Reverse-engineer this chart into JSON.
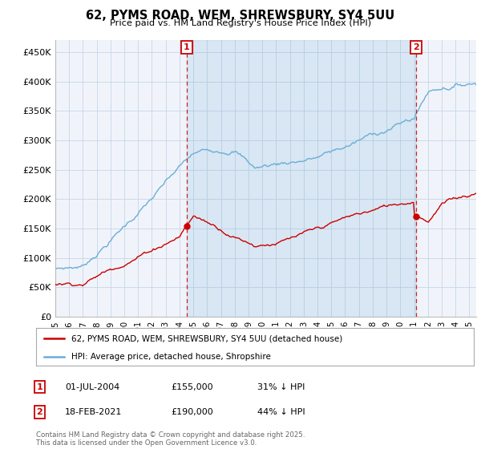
{
  "title": "62, PYMS ROAD, WEM, SHREWSBURY, SY4 5UU",
  "subtitle": "Price paid vs. HM Land Registry's House Price Index (HPI)",
  "yticks": [
    0,
    50000,
    100000,
    150000,
    200000,
    250000,
    300000,
    350000,
    400000,
    450000
  ],
  "ytick_labels": [
    "£0",
    "£50K",
    "£100K",
    "£150K",
    "£200K",
    "£250K",
    "£300K",
    "£350K",
    "£400K",
    "£450K"
  ],
  "ylim": [
    0,
    470000
  ],
  "xlim_start": 1995.0,
  "xlim_end": 2025.5,
  "hpi_color": "#6baed6",
  "hpi_fill_color": "#dbeaf7",
  "price_color": "#cc0000",
  "marker1_date": 2004.5,
  "marker1_price": 155000,
  "marker2_date": 2021.125,
  "marker2_price": 190000,
  "legend_line1": "62, PYMS ROAD, WEM, SHREWSBURY, SY4 5UU (detached house)",
  "legend_line2": "HPI: Average price, detached house, Shropshire",
  "marker1_text": "01-JUL-2004",
  "marker1_price_str": "£155,000",
  "marker1_pct": "31% ↓ HPI",
  "marker2_text": "18-FEB-2021",
  "marker2_price_str": "£190,000",
  "marker2_pct": "44% ↓ HPI",
  "footer": "Contains HM Land Registry data © Crown copyright and database right 2025.\nThis data is licensed under the Open Government Licence v3.0.",
  "bg_color": "#ffffff",
  "chart_bg": "#f0f4fa",
  "grid_color": "#c8d4e8"
}
